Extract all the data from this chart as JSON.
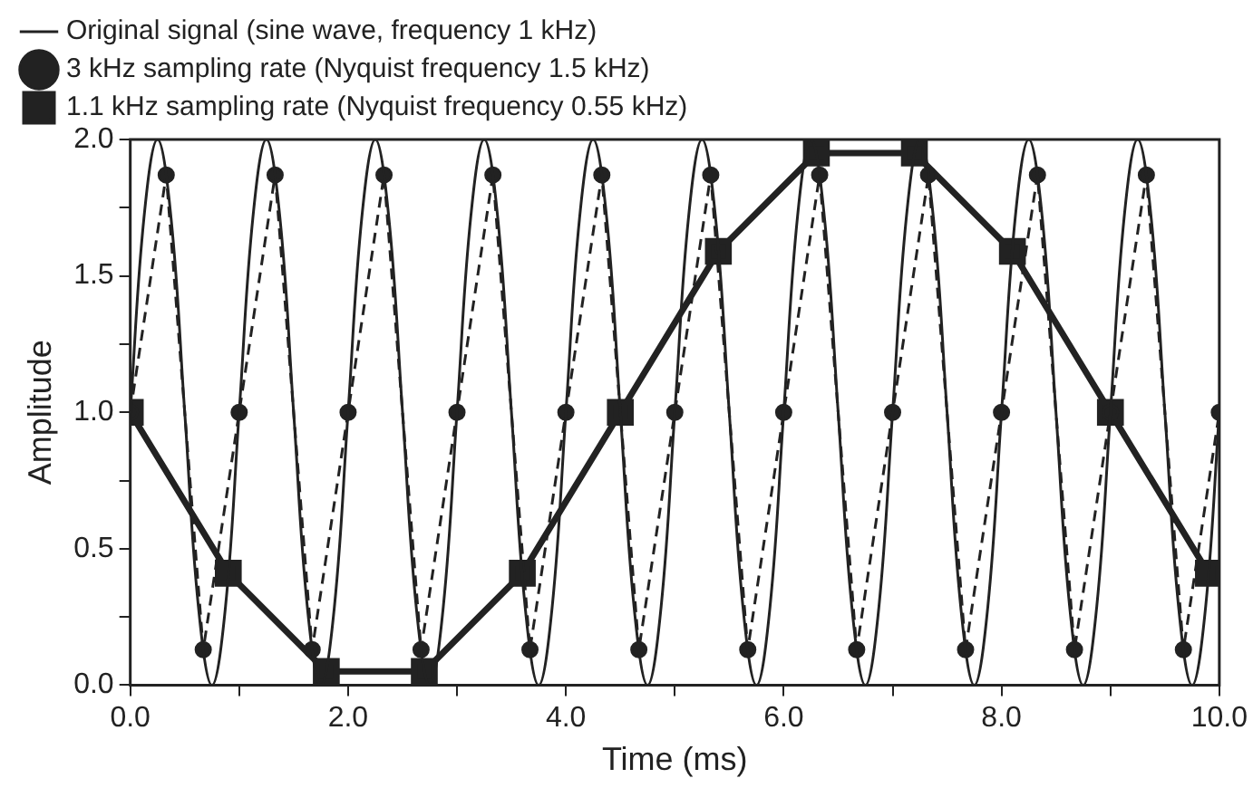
{
  "chart_data": {
    "type": "line",
    "xlabel": "Time (ms)",
    "ylabel": "Amplitude",
    "xlim": [
      0,
      10
    ],
    "ylim": [
      0,
      2
    ],
    "xticks": [
      {
        "value": 0,
        "label": "0.0"
      },
      {
        "value": 1,
        "label": null
      },
      {
        "value": 2,
        "label": "2.0"
      },
      {
        "value": 3,
        "label": null
      },
      {
        "value": 4,
        "label": "4.0"
      },
      {
        "value": 5,
        "label": null
      },
      {
        "value": 6,
        "label": "6.0"
      },
      {
        "value": 7,
        "label": null
      },
      {
        "value": 8,
        "label": "8.0"
      },
      {
        "value": 9,
        "label": null
      },
      {
        "value": 10,
        "label": "10.0"
      }
    ],
    "yticks": [
      {
        "value": 0,
        "label": "0.0"
      },
      {
        "value": 0.25,
        "label": null
      },
      {
        "value": 0.5,
        "label": "0.5"
      },
      {
        "value": 0.75,
        "label": null
      },
      {
        "value": 1,
        "label": "1.0"
      },
      {
        "value": 1.25,
        "label": null
      },
      {
        "value": 1.5,
        "label": "1.5"
      },
      {
        "value": 1.75,
        "label": null
      },
      {
        "value": 2,
        "label": "2.0"
      }
    ],
    "grid": false,
    "legend": "top left",
    "series": [
      {
        "name": "Original signal (sine wave, frequency 1 kHz)",
        "color": "#222222",
        "marker": "none",
        "line_style": "solid",
        "x": [
          0,
          0.125,
          0.25,
          0.375,
          0.5,
          0.625,
          0.75,
          0.875,
          1,
          1.125,
          1.25,
          1.375,
          1.5,
          1.625,
          1.75,
          1.875,
          2,
          2.125,
          2.25,
          2.375,
          2.5,
          2.625,
          2.75,
          2.875,
          3,
          3.125,
          3.25,
          3.375,
          3.5,
          3.625,
          3.75,
          3.875,
          4,
          4.125,
          4.25,
          4.375,
          4.5,
          4.625,
          4.75,
          4.875,
          5,
          5.125,
          5.25,
          5.375,
          5.5,
          5.625,
          5.75,
          5.875,
          6,
          6.125,
          6.25,
          6.375,
          6.5,
          6.625,
          6.75,
          6.875,
          7,
          7.125,
          7.25,
          7.375,
          7.5,
          7.625,
          7.75,
          7.875,
          8,
          8.125,
          8.25,
          8.375,
          8.5,
          8.625,
          8.75,
          8.875,
          9,
          9.125,
          9.25,
          9.375,
          9.5,
          9.625,
          9.75,
          9.875,
          10
        ],
        "values": [
          1,
          1.71,
          2,
          1.71,
          1,
          0.29,
          0,
          0.29,
          1,
          1.71,
          2,
          1.71,
          1,
          0.29,
          0,
          0.29,
          1,
          1.71,
          2,
          1.71,
          1,
          0.29,
          0,
          0.29,
          1,
          1.71,
          2,
          1.71,
          1,
          0.29,
          0,
          0.29,
          1,
          1.71,
          2,
          1.71,
          1,
          0.29,
          0,
          0.29,
          1,
          1.71,
          2,
          1.71,
          1,
          0.29,
          0,
          0.29,
          1,
          1.71,
          2,
          1.71,
          1,
          0.29,
          0,
          0.29,
          1,
          1.71,
          2,
          1.71,
          1,
          0.29,
          0,
          0.29,
          1,
          1.71,
          2,
          1.71,
          1,
          0.29,
          0,
          0.29,
          1,
          1.71,
          2,
          1.71,
          1,
          0.29,
          0,
          0.29,
          1
        ]
      },
      {
        "name": "3 kHz sampling rate (Nyquist frequency 1.5 kHz)",
        "color": "#222222",
        "marker": "circle",
        "line_style": "dashed",
        "x": [
          0,
          0.33,
          0.67,
          1,
          1.33,
          1.67,
          2,
          2.33,
          2.67,
          3,
          3.33,
          3.67,
          4,
          4.33,
          4.67,
          5,
          5.33,
          5.67,
          6,
          6.33,
          6.67,
          7,
          7.33,
          7.67,
          8,
          8.33,
          8.67,
          9,
          9.33,
          9.67,
          10
        ],
        "values": [
          1,
          1.87,
          0.13,
          1,
          1.87,
          0.13,
          1,
          1.87,
          0.13,
          1,
          1.87,
          0.13,
          1,
          1.87,
          0.13,
          1,
          1.87,
          0.13,
          1,
          1.87,
          0.13,
          1,
          1.87,
          0.13,
          1,
          1.87,
          0.13,
          1,
          1.87,
          0.13,
          1
        ]
      },
      {
        "name": "1.1 kHz sampling rate (Nyquist frequency 0.55 kHz)",
        "color": "#222222",
        "marker": "square",
        "line_style": "solid",
        "x": [
          0,
          0.9,
          1.8,
          2.7,
          3.6,
          4.5,
          5.4,
          6.3,
          7.2,
          8.1,
          9,
          9.9
        ],
        "values": [
          1,
          0.41,
          0.05,
          0.05,
          0.41,
          1,
          1.59,
          1.95,
          1.95,
          1.59,
          1,
          0.41
        ]
      }
    ]
  }
}
